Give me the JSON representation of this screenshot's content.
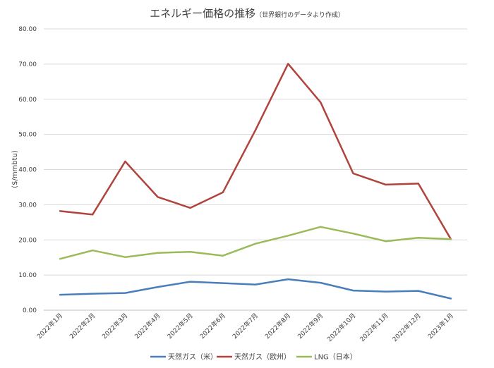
{
  "chart_data": {
    "type": "line",
    "title": "エネルギー価格の推移",
    "subtitle": "（世界銀行のデータより作成）",
    "xlabel": "",
    "ylabel": "($/mmbtu)",
    "ylim": [
      0,
      80
    ],
    "ytick_labels": [
      "0.00",
      "10.00",
      "20.00",
      "30.00",
      "40.00",
      "50.00",
      "60.00",
      "70.00",
      "80.00"
    ],
    "categories": [
      "2022年1月",
      "2022年2月",
      "2022年3月",
      "2022年4月",
      "2022年5月",
      "2022年6月",
      "2022年7月",
      "2022年8月",
      "2022年9月",
      "2022年10月",
      "2022年11月",
      "2022年12月",
      "2023年1月"
    ],
    "grid": true,
    "legend_position": "bottom",
    "series": [
      {
        "name": "天然ガス（米）",
        "color": "#4a7ebb",
        "values": [
          4.4,
          4.7,
          4.9,
          6.6,
          8.1,
          7.7,
          7.3,
          8.8,
          7.8,
          5.6,
          5.3,
          5.5,
          3.3
        ]
      },
      {
        "name": "天然ガス（欧州）",
        "color": "#b0443d",
        "values": [
          28.2,
          27.2,
          42.3,
          32.2,
          29.1,
          33.5,
          51.2,
          70.1,
          59.1,
          38.9,
          35.7,
          36.0,
          20.2
        ]
      },
      {
        "name": "LNG（日本）",
        "color": "#9bbb59",
        "values": [
          14.6,
          17.0,
          15.1,
          16.3,
          16.6,
          15.5,
          18.9,
          21.2,
          23.7,
          21.8,
          19.6,
          20.6,
          20.2
        ]
      }
    ]
  }
}
